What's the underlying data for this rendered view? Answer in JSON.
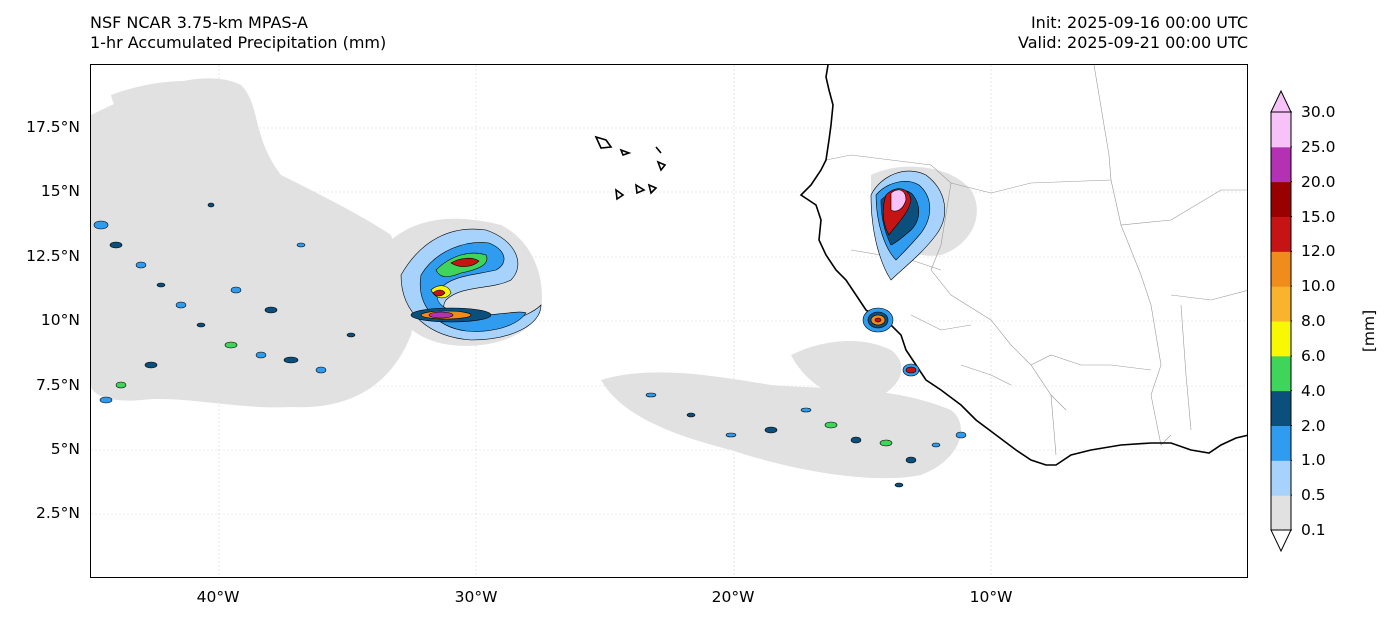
{
  "titles": {
    "model": "NSF NCAR 3.75-km MPAS-A",
    "field": "1-hr Accumulated Precipitation (mm)",
    "init": "Init: 2025-09-16 00:00 UTC",
    "valid": "Valid: 2025-09-21 00:00 UTC"
  },
  "axes": {
    "lat_labels": [
      "17.5°N",
      "15°N",
      "12.5°N",
      "10°N",
      "7.5°N",
      "5°N",
      "2.5°N"
    ],
    "lon_labels": [
      "40°W",
      "30°W",
      "20°W",
      "10°W"
    ]
  },
  "colorbar": {
    "unit": "[mm]",
    "levels": [
      "0.1",
      "0.5",
      "1.0",
      "2.0",
      "4.0",
      "6.0",
      "8.0",
      "10.0",
      "12.0",
      "15.0",
      "20.0",
      "25.0",
      "30.0"
    ],
    "colors": [
      "#e1e1e1",
      "#a6d2fb",
      "#2f9cf0",
      "#0b4f7d",
      "#3fd45a",
      "#f8f800",
      "#f9b32c",
      "#ef8c1c",
      "#c61313",
      "#990000",
      "#b431b4",
      "#f7c2f7"
    ],
    "extend_color": "#f7c2f7"
  },
  "precip_colors": {
    "light": "#e1e1e1",
    "pale_blue": "#a6d2fb",
    "blue": "#2f9cf0",
    "navy": "#0b4f7d",
    "green": "#3fd45a",
    "yellow": "#f8f800",
    "orange": "#ef8c1c",
    "red": "#c61313",
    "magenta": "#b431b4",
    "pink": "#f7c2f7"
  }
}
